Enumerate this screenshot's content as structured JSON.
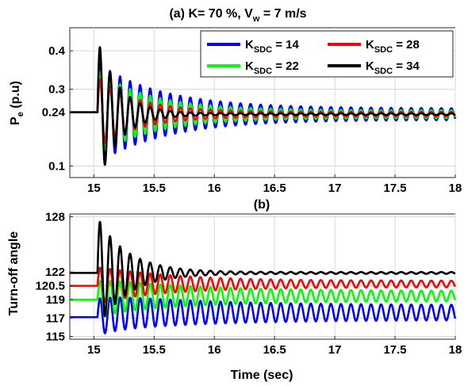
{
  "chart_data": [
    {
      "type": "line",
      "panel": "a",
      "title": "(a) K= 70 %, V",
      "title_sub": "w",
      "title_suffix": " = 7 m/s",
      "ylabel": "P",
      "ylabel_sub": "e",
      "ylabel_suffix": " (p.u)",
      "xlabel": "",
      "xlim": [
        14.8,
        18
      ],
      "ylim": [
        0.07,
        0.46
      ],
      "xticks": [
        15,
        15.5,
        16,
        16.5,
        17,
        17.5,
        18
      ],
      "xtick_labels": [
        "15",
        "15.5",
        "16",
        "16.5",
        "17",
        "17.5",
        "18"
      ],
      "yticks": [
        0.1,
        0.24,
        0.3,
        0.4
      ],
      "ytick_labels": [
        "0.1",
        "0.24",
        "0.3",
        "0.4"
      ],
      "grid": true,
      "legend_position": "top-right",
      "series": [
        {
          "name": "14",
          "color": "#0000ff",
          "pre": 0.24,
          "final": 0.235,
          "amp_peak": 0.13,
          "amp_final": 0.015,
          "decay": 0.55,
          "freq": 12
        },
        {
          "name": "28",
          "color": "#ff0000",
          "pre": 0.24,
          "final": 0.235,
          "amp_peak": 0.09,
          "amp_final": 0.006,
          "decay": 0.35,
          "freq": 12
        },
        {
          "name": "22",
          "color": "#00ff00",
          "pre": 0.24,
          "final": 0.235,
          "amp_peak": 0.11,
          "amp_final": 0.01,
          "decay": 0.45,
          "freq": 12
        },
        {
          "name": "34",
          "color": "#000000",
          "pre": 0.24,
          "final": 0.235,
          "amp_peak": 0.19,
          "amp_final": 0.002,
          "decay": 0.18,
          "freq": 12
        }
      ]
    },
    {
      "type": "line",
      "panel": "b",
      "title": "(b)",
      "ylabel": "Turn-off angle",
      "xlabel": "Time (sec)",
      "xlim": [
        14.8,
        18
      ],
      "ylim": [
        114.7,
        128.3
      ],
      "xticks": [
        15,
        15.5,
        16,
        16.5,
        17,
        17.5,
        18
      ],
      "xtick_labels": [
        "15",
        "15.5",
        "16",
        "16.5",
        "17",
        "17.5",
        "18"
      ],
      "yticks": [
        115,
        117,
        119,
        120.5,
        122,
        128
      ],
      "ytick_labels": [
        "115",
        "117",
        "119",
        "120.5",
        "122",
        "128"
      ],
      "grid": true,
      "series": [
        {
          "name": "14",
          "color": "#0000ff",
          "pre": 117.1,
          "final": 117.6,
          "amp_peak": 2.0,
          "amp_final": 0.8,
          "decay": 0.9,
          "freq": 12
        },
        {
          "name": "28",
          "color": "#ff0000",
          "pre": 120.5,
          "final": 120.7,
          "amp_peak": 2.0,
          "amp_final": 0.35,
          "decay": 0.6,
          "freq": 12
        },
        {
          "name": "22",
          "color": "#00ff00",
          "pre": 119.0,
          "final": 119.4,
          "amp_peak": 2.0,
          "amp_final": 0.55,
          "decay": 0.75,
          "freq": 12
        },
        {
          "name": "34",
          "color": "#000000",
          "pre": 121.9,
          "final": 121.9,
          "amp_peak": 6.0,
          "amp_final": 0.1,
          "decay": 0.25,
          "freq": 12
        }
      ]
    }
  ],
  "legend": {
    "prefix": "K",
    "sub": "SDC",
    "sep": " = "
  }
}
